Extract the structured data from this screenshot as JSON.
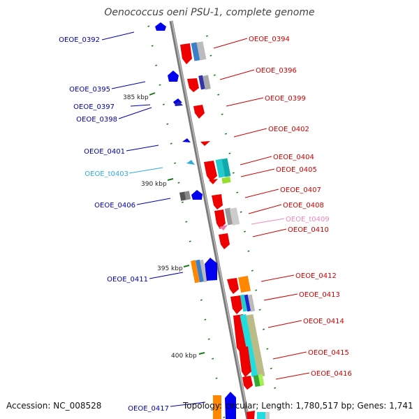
{
  "title": "Oenococcus oeni PSU-1, complete genome",
  "footer": {
    "accession": "Accession: NC_008528",
    "summary": "Topology: circular; Length: 1,780,517 bp; Genes: 1,741"
  },
  "colors": {
    "forward_label": "#cc0000",
    "reverse_label": "#0000aa",
    "trna_forward_label": "#ee88bb",
    "trna_reverse_label": "#33aadd",
    "kbp_tick": "#1a7a1a",
    "backbone": "#888888"
  },
  "kbp_labels": [
    "385 kbp",
    "390 kbp",
    "395 kbp",
    "400 kbp"
  ],
  "genes": [
    {
      "label": "OEOE_0392",
      "strand": "reverse"
    },
    {
      "label": "OEOE_0394",
      "strand": "forward"
    },
    {
      "label": "OEOE_0395",
      "strand": "reverse"
    },
    {
      "label": "OEOE_0396",
      "strand": "forward"
    },
    {
      "label": "OEOE_0397",
      "strand": "reverse"
    },
    {
      "label": "OEOE_0398",
      "strand": "reverse"
    },
    {
      "label": "OEOE_0399",
      "strand": "forward"
    },
    {
      "label": "OEOE_0401",
      "strand": "reverse"
    },
    {
      "label": "OEOE_0402",
      "strand": "forward"
    },
    {
      "label": "OEOE_t0403",
      "strand": "reverse",
      "type": "tRNA"
    },
    {
      "label": "OEOE_0404",
      "strand": "forward"
    },
    {
      "label": "OEOE_0405",
      "strand": "forward"
    },
    {
      "label": "OEOE_0406",
      "strand": "reverse"
    },
    {
      "label": "OEOE_0407",
      "strand": "forward"
    },
    {
      "label": "OEOE_0408",
      "strand": "forward"
    },
    {
      "label": "OEOE_t0409",
      "strand": "forward",
      "type": "tRNA"
    },
    {
      "label": "OEOE_0410",
      "strand": "forward"
    },
    {
      "label": "OEOE_0411",
      "strand": "reverse"
    },
    {
      "label": "OEOE_0412",
      "strand": "forward"
    },
    {
      "label": "OEOE_0413",
      "strand": "forward"
    },
    {
      "label": "OEOE_0414",
      "strand": "forward"
    },
    {
      "label": "OEOE_0415",
      "strand": "forward"
    },
    {
      "label": "OEOE_0416",
      "strand": "forward"
    },
    {
      "label": "OEOE_0417",
      "strand": "reverse"
    }
  ]
}
